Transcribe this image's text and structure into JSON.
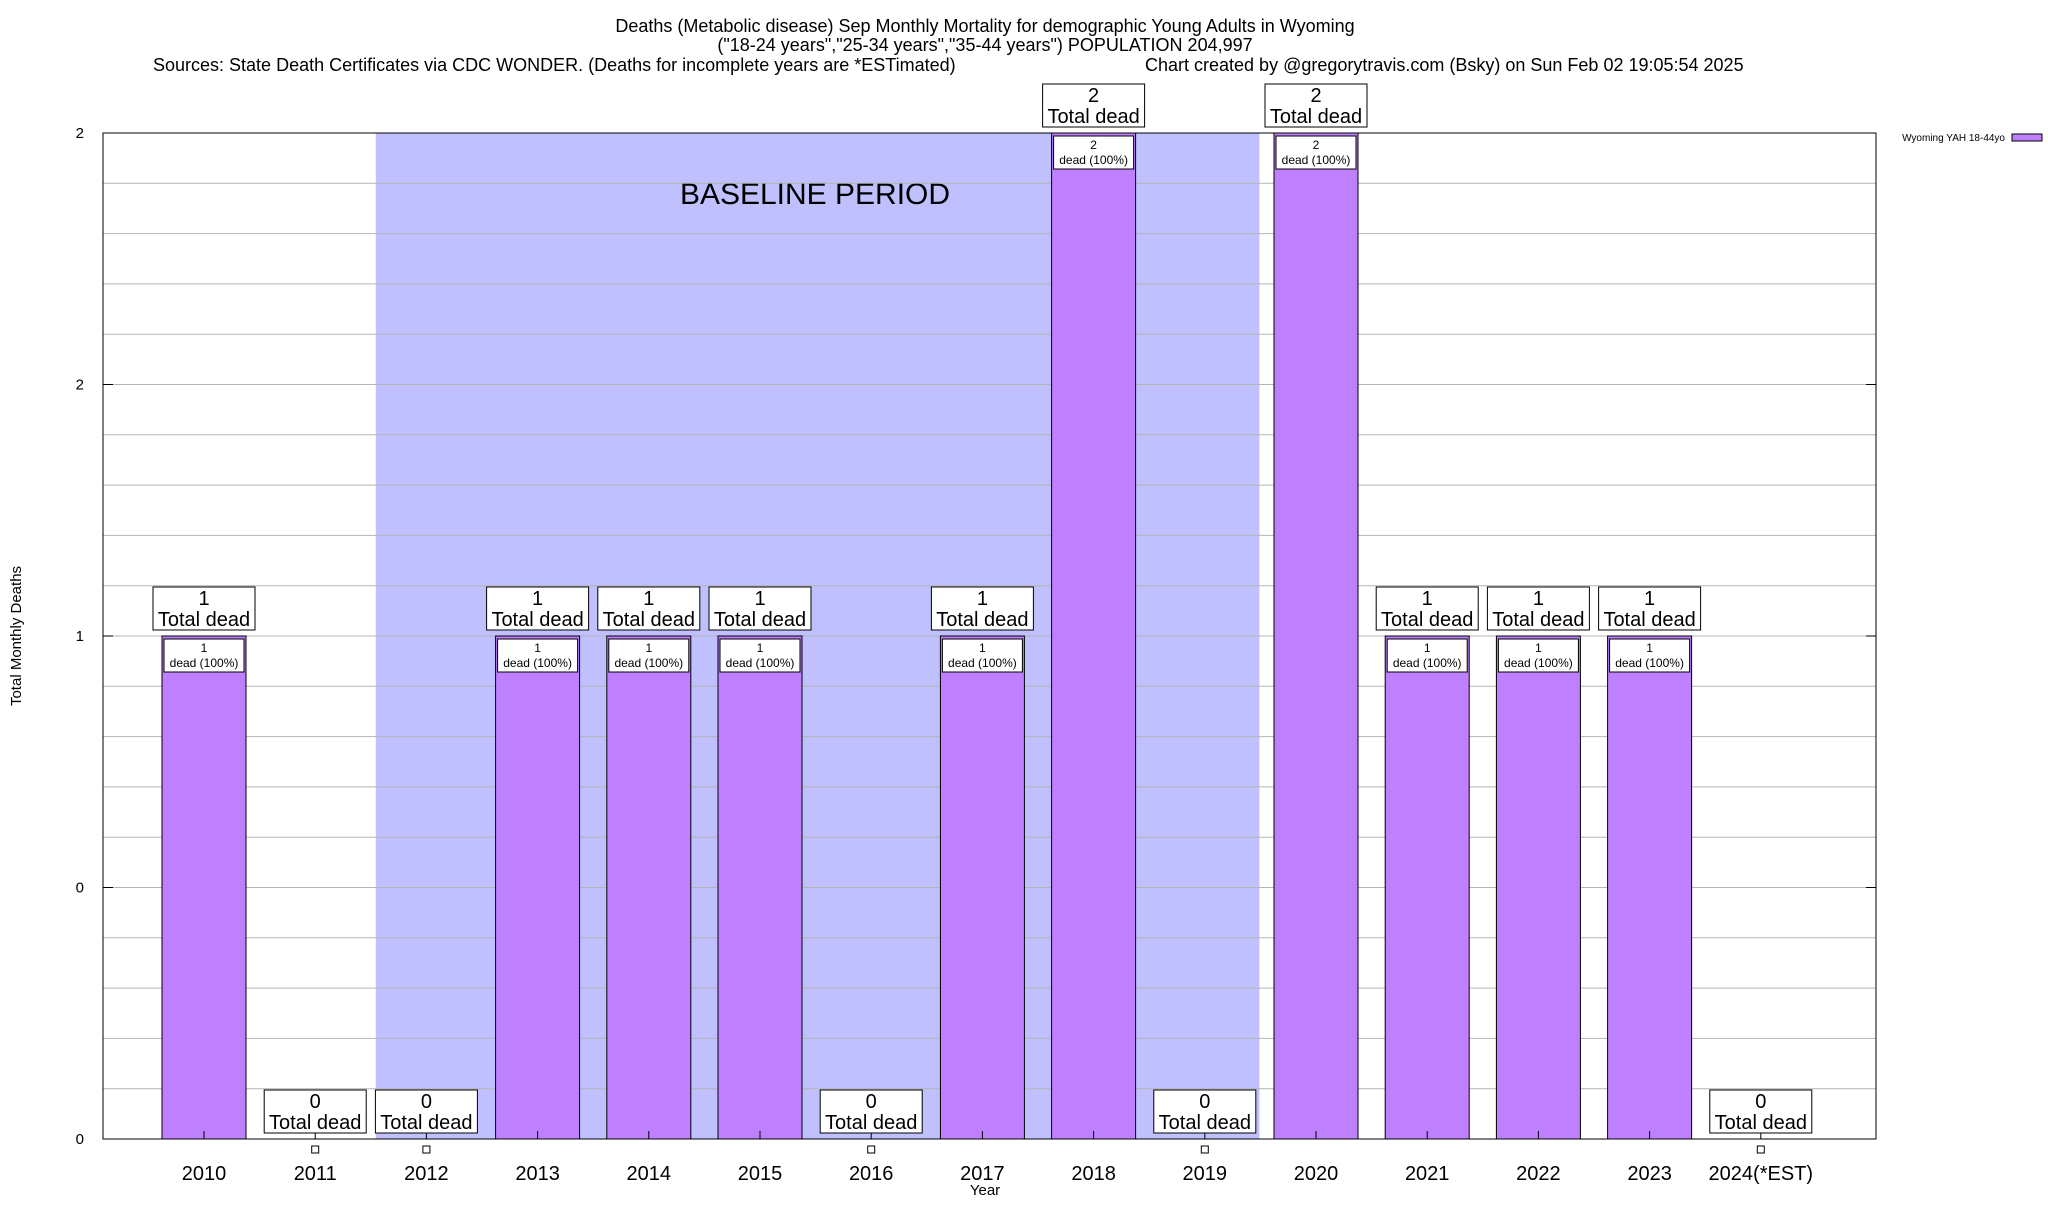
{
  "header": {
    "title_line1": "Deaths (Metabolic disease) Sep Monthly Mortality for demographic Young Adults in Wyoming",
    "title_line2": "(\"18-24 years\",\"25-34 years\",\"35-44 years\") POPULATION 204,997",
    "sources": "Sources: State Death Certificates via CDC WONDER. (Deaths for incomplete years are *ESTimated)",
    "credit": "Chart created by @gregorytravis.com (Bsky) on Sun Feb 02 19:05:54 2025"
  },
  "chart_data": {
    "type": "bar",
    "title": "Deaths (Metabolic disease) Sep Monthly Mortality for demographic Young Adults in Wyoming",
    "xlabel": "Year",
    "ylabel": "Total Monthly Deaths",
    "categories": [
      "2010",
      "2011",
      "2012",
      "2013",
      "2014",
      "2015",
      "2016",
      "2017",
      "2018",
      "2019",
      "2020",
      "2021",
      "2022",
      "2023",
      "2024(*EST)"
    ],
    "series": [
      {
        "name": "Wyoming YAH 18-44yo",
        "color": "#bf80ff",
        "values": [
          1,
          0,
          0,
          1,
          1,
          1,
          0,
          1,
          2,
          0,
          2,
          1,
          1,
          1,
          0
        ]
      }
    ],
    "ylim": [
      0,
      2
    ],
    "y_tick_labels": [
      "0",
      "0",
      "1",
      "2",
      "2"
    ],
    "y_tick_values": [
      0,
      0.5,
      1,
      1.5,
      2
    ],
    "grid": true,
    "legend_position": "top-right",
    "baseline": {
      "label": "BASELINE PERIOD",
      "from": "2012",
      "to": "2019",
      "color": "#c0c0ff"
    },
    "total_label_suffix": "Total dead",
    "inner_label_suffix": "dead (100%)"
  }
}
